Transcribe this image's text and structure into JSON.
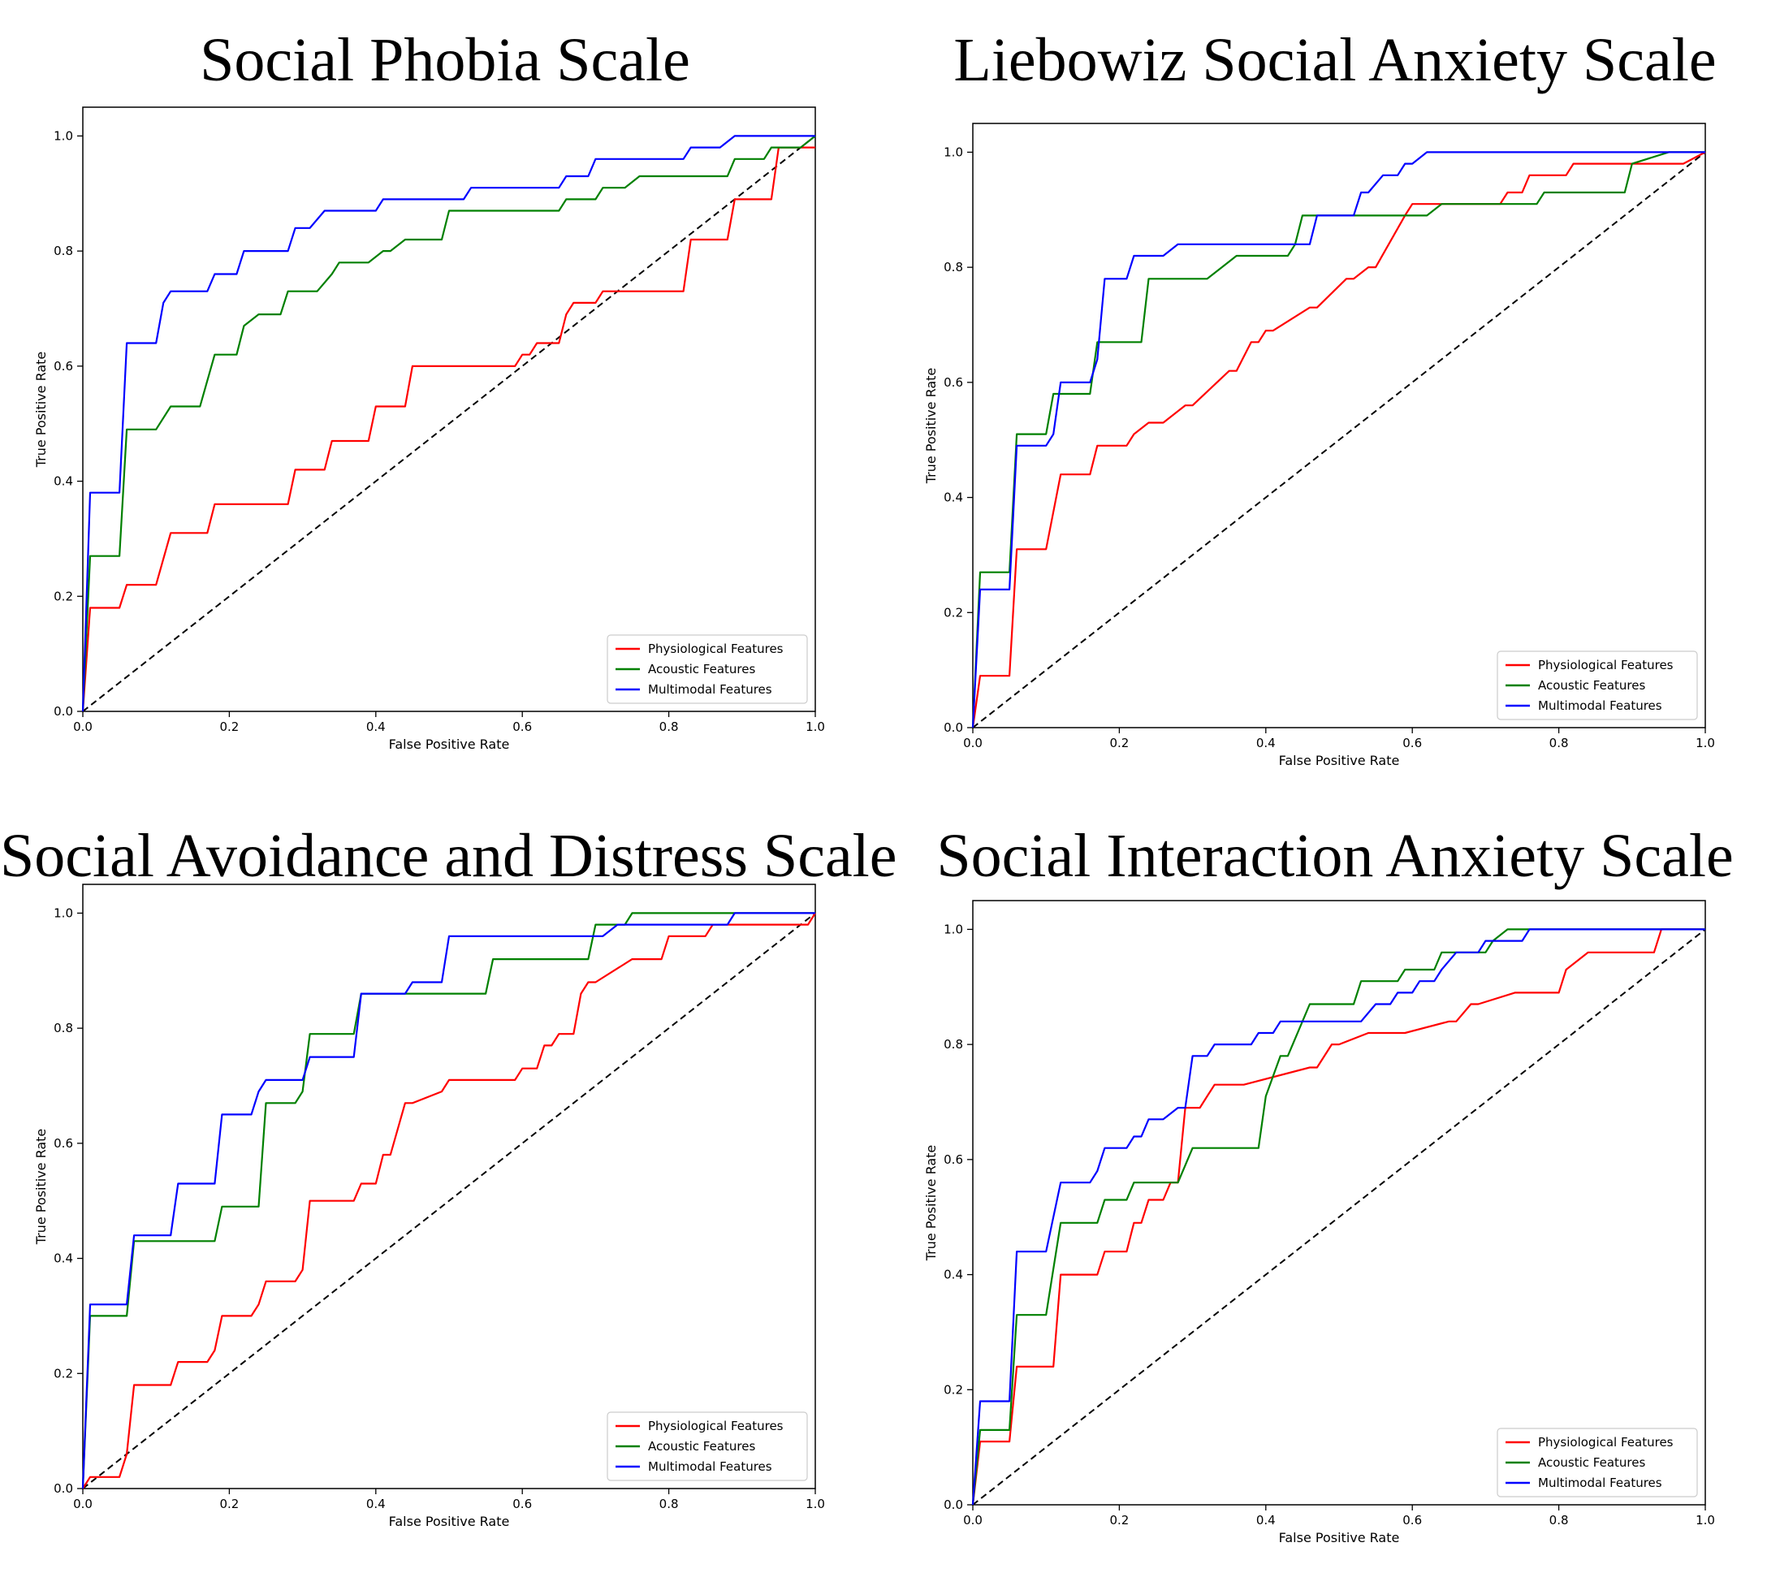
{
  "chart_data": [
    {
      "type": "line",
      "title": "Social Phobia Scale",
      "xlabel": "False Positive Rate",
      "ylabel": "True Positive Rate",
      "xlim": [
        0,
        1
      ],
      "ylim": [
        0,
        1
      ],
      "xticks": [
        "0.0",
        "0.2",
        "0.4",
        "0.6",
        "0.8",
        "1.0"
      ],
      "yticks": [
        "0.0",
        "0.2",
        "0.4",
        "0.6",
        "0.8",
        "1.0"
      ],
      "legend_position": "bottom-right",
      "series": [
        {
          "name": "Physiological Features",
          "color": "#ff0000",
          "x": [
            0,
            0.01,
            0.05,
            0.06,
            0.1,
            0.12,
            0.17,
            0.18,
            0.28,
            0.29,
            0.33,
            0.34,
            0.39,
            0.4,
            0.44,
            0.45,
            0.59,
            0.6,
            0.61,
            0.62,
            0.65,
            0.66,
            0.67,
            0.7,
            0.71,
            0.82,
            0.83,
            0.88,
            0.89,
            0.94,
            0.95,
            1.0
          ],
          "y": [
            0,
            0.18,
            0.18,
            0.22,
            0.22,
            0.31,
            0.31,
            0.36,
            0.36,
            0.42,
            0.42,
            0.47,
            0.47,
            0.53,
            0.53,
            0.6,
            0.6,
            0.62,
            0.62,
            0.64,
            0.64,
            0.69,
            0.71,
            0.71,
            0.73,
            0.73,
            0.82,
            0.82,
            0.89,
            0.89,
            0.98,
            0.98
          ]
        },
        {
          "name": "Acoustic Features",
          "color": "#008000",
          "x": [
            0,
            0.01,
            0.05,
            0.06,
            0.1,
            0.12,
            0.16,
            0.18,
            0.21,
            0.22,
            0.24,
            0.27,
            0.28,
            0.32,
            0.34,
            0.35,
            0.39,
            0.41,
            0.42,
            0.44,
            0.49,
            0.5,
            0.65,
            0.66,
            0.7,
            0.71,
            0.74,
            0.76,
            0.88,
            0.89,
            0.93,
            0.94,
            0.98,
            1.0
          ],
          "y": [
            0,
            0.27,
            0.27,
            0.49,
            0.49,
            0.53,
            0.53,
            0.62,
            0.62,
            0.67,
            0.69,
            0.69,
            0.73,
            0.73,
            0.76,
            0.78,
            0.78,
            0.8,
            0.8,
            0.82,
            0.82,
            0.87,
            0.87,
            0.89,
            0.89,
            0.91,
            0.91,
            0.93,
            0.93,
            0.96,
            0.96,
            0.98,
            0.98,
            1.0
          ]
        },
        {
          "name": "Multimodal Features",
          "color": "#0000ff",
          "x": [
            0,
            0.01,
            0.05,
            0.06,
            0.1,
            0.11,
            0.12,
            0.17,
            0.18,
            0.21,
            0.22,
            0.28,
            0.29,
            0.31,
            0.33,
            0.4,
            0.41,
            0.52,
            0.53,
            0.65,
            0.66,
            0.69,
            0.7,
            0.82,
            0.83,
            0.86,
            0.87,
            0.89,
            1.0
          ],
          "y": [
            0,
            0.38,
            0.38,
            0.64,
            0.64,
            0.71,
            0.73,
            0.73,
            0.76,
            0.76,
            0.8,
            0.8,
            0.84,
            0.84,
            0.87,
            0.87,
            0.89,
            0.89,
            0.91,
            0.91,
            0.93,
            0.93,
            0.96,
            0.96,
            0.98,
            0.98,
            0.98,
            1.0,
            1.0
          ]
        },
        {
          "name": "chance",
          "color": "#000000",
          "dashed": true,
          "x": [
            0,
            1
          ],
          "y": [
            0,
            1
          ]
        }
      ]
    },
    {
      "type": "line",
      "title": "Liebowiz Social Anxiety Scale",
      "xlabel": "False Positive Rate",
      "ylabel": "True Positive Rate",
      "xlim": [
        0,
        1
      ],
      "ylim": [
        0,
        1
      ],
      "xticks": [
        "0.0",
        "0.2",
        "0.4",
        "0.6",
        "0.8",
        "1.0"
      ],
      "yticks": [
        "0.0",
        "0.2",
        "0.4",
        "0.6",
        "0.8",
        "1.0"
      ],
      "legend_position": "bottom-right",
      "series": [
        {
          "name": "Physiological Features",
          "color": "#ff0000",
          "x": [
            0,
            0.01,
            0.05,
            0.06,
            0.1,
            0.12,
            0.16,
            0.17,
            0.21,
            0.22,
            0.24,
            0.26,
            0.29,
            0.3,
            0.35,
            0.36,
            0.38,
            0.39,
            0.4,
            0.41,
            0.46,
            0.47,
            0.51,
            0.52,
            0.54,
            0.55,
            0.59,
            0.6,
            0.65,
            0.72,
            0.73,
            0.75,
            0.76,
            0.81,
            0.82,
            0.97,
            1.0
          ],
          "y": [
            0,
            0.09,
            0.09,
            0.31,
            0.31,
            0.44,
            0.44,
            0.49,
            0.49,
            0.51,
            0.53,
            0.53,
            0.56,
            0.56,
            0.62,
            0.62,
            0.67,
            0.67,
            0.69,
            0.69,
            0.73,
            0.73,
            0.78,
            0.78,
            0.8,
            0.8,
            0.89,
            0.91,
            0.91,
            0.91,
            0.93,
            0.93,
            0.96,
            0.96,
            0.98,
            0.98,
            1.0
          ]
        },
        {
          "name": "Acoustic Features",
          "color": "#008000",
          "x": [
            0,
            0.01,
            0.05,
            0.06,
            0.1,
            0.11,
            0.16,
            0.17,
            0.23,
            0.24,
            0.32,
            0.34,
            0.36,
            0.43,
            0.44,
            0.45,
            0.62,
            0.64,
            0.69,
            0.7,
            0.77,
            0.78,
            0.89,
            0.9,
            0.95,
            1.0
          ],
          "y": [
            0,
            0.27,
            0.27,
            0.51,
            0.51,
            0.58,
            0.58,
            0.67,
            0.67,
            0.78,
            0.78,
            0.8,
            0.82,
            0.82,
            0.84,
            0.89,
            0.89,
            0.91,
            0.91,
            0.91,
            0.91,
            0.93,
            0.93,
            0.98,
            1.0,
            1.0
          ]
        },
        {
          "name": "Multimodal Features",
          "color": "#0000ff",
          "x": [
            0,
            0.01,
            0.05,
            0.06,
            0.1,
            0.11,
            0.12,
            0.16,
            0.17,
            0.18,
            0.21,
            0.22,
            0.26,
            0.28,
            0.46,
            0.47,
            0.52,
            0.53,
            0.54,
            0.56,
            0.58,
            0.59,
            0.6,
            0.62,
            1.0
          ],
          "y": [
            0,
            0.24,
            0.24,
            0.49,
            0.49,
            0.51,
            0.6,
            0.6,
            0.64,
            0.78,
            0.78,
            0.82,
            0.82,
            0.84,
            0.84,
            0.89,
            0.89,
            0.93,
            0.93,
            0.96,
            0.96,
            0.98,
            0.98,
            1.0,
            1.0
          ]
        },
        {
          "name": "chance",
          "color": "#000000",
          "dashed": true,
          "x": [
            0,
            1
          ],
          "y": [
            0,
            1
          ]
        }
      ]
    },
    {
      "type": "line",
      "title": "Social Avoidance and Distress Scale",
      "xlabel": "False Positive Rate",
      "ylabel": "True Positive Rate",
      "xlim": [
        0,
        1
      ],
      "ylim": [
        0,
        1
      ],
      "xticks": [
        "0.0",
        "0.2",
        "0.4",
        "0.6",
        "0.8",
        "1.0"
      ],
      "yticks": [
        "0.0",
        "0.2",
        "0.4",
        "0.6",
        "0.8",
        "1.0"
      ],
      "legend_position": "bottom-right",
      "series": [
        {
          "name": "Physiological Features",
          "color": "#ff0000",
          "x": [
            0,
            0.01,
            0.05,
            0.06,
            0.07,
            0.12,
            0.13,
            0.17,
            0.18,
            0.19,
            0.23,
            0.24,
            0.25,
            0.29,
            0.3,
            0.31,
            0.37,
            0.38,
            0.4,
            0.41,
            0.42,
            0.44,
            0.45,
            0.49,
            0.5,
            0.59,
            0.6,
            0.62,
            0.63,
            0.64,
            0.65,
            0.67,
            0.68,
            0.69,
            0.7,
            0.75,
            0.76,
            0.79,
            0.8,
            0.85,
            0.86,
            0.99,
            1.0
          ],
          "y": [
            0,
            0.02,
            0.02,
            0.06,
            0.18,
            0.18,
            0.22,
            0.22,
            0.24,
            0.3,
            0.3,
            0.32,
            0.36,
            0.36,
            0.38,
            0.5,
            0.5,
            0.53,
            0.53,
            0.58,
            0.58,
            0.67,
            0.67,
            0.69,
            0.71,
            0.71,
            0.73,
            0.73,
            0.77,
            0.77,
            0.79,
            0.79,
            0.86,
            0.88,
            0.88,
            0.92,
            0.92,
            0.92,
            0.96,
            0.96,
            0.98,
            0.98,
            1.0
          ]
        },
        {
          "name": "Acoustic Features",
          "color": "#008000",
          "x": [
            0,
            0.01,
            0.06,
            0.07,
            0.18,
            0.19,
            0.24,
            0.25,
            0.29,
            0.3,
            0.31,
            0.37,
            0.38,
            0.55,
            0.56,
            0.69,
            0.7,
            0.74,
            0.75,
            1.0
          ],
          "y": [
            0,
            0.3,
            0.3,
            0.43,
            0.43,
            0.49,
            0.49,
            0.67,
            0.67,
            0.69,
            0.79,
            0.79,
            0.86,
            0.86,
            0.92,
            0.92,
            0.98,
            0.98,
            1.0,
            1.0
          ]
        },
        {
          "name": "Multimodal Features",
          "color": "#0000ff",
          "x": [
            0,
            0.01,
            0.06,
            0.07,
            0.12,
            0.13,
            0.18,
            0.19,
            0.23,
            0.24,
            0.25,
            0.3,
            0.31,
            0.37,
            0.38,
            0.44,
            0.45,
            0.49,
            0.5,
            0.62,
            0.7,
            0.71,
            0.73,
            0.74,
            0.88,
            0.89,
            1.0
          ],
          "y": [
            0,
            0.32,
            0.32,
            0.44,
            0.44,
            0.53,
            0.53,
            0.65,
            0.65,
            0.69,
            0.71,
            0.71,
            0.75,
            0.75,
            0.86,
            0.86,
            0.88,
            0.88,
            0.96,
            0.96,
            0.96,
            0.96,
            0.98,
            0.98,
            0.98,
            1.0,
            1.0
          ]
        },
        {
          "name": "chance",
          "color": "#000000",
          "dashed": true,
          "x": [
            0,
            1
          ],
          "y": [
            0,
            1
          ]
        }
      ]
    },
    {
      "type": "line",
      "title": "Social Interaction Anxiety Scale",
      "xlabel": "False Positive Rate",
      "ylabel": "True Positive Rate",
      "xlim": [
        0,
        1
      ],
      "ylim": [
        0,
        1
      ],
      "xticks": [
        "0.0",
        "0.2",
        "0.4",
        "0.6",
        "0.8",
        "1.0"
      ],
      "yticks": [
        "0.0",
        "0.2",
        "0.4",
        "0.6",
        "0.8",
        "1.0"
      ],
      "legend_position": "bottom-right",
      "series": [
        {
          "name": "Physiological Features",
          "color": "#ff0000",
          "x": [
            0,
            0.01,
            0.05,
            0.06,
            0.11,
            0.12,
            0.17,
            0.18,
            0.21,
            0.22,
            0.23,
            0.24,
            0.26,
            0.27,
            0.28,
            0.29,
            0.31,
            0.32,
            0.33,
            0.36,
            0.37,
            0.46,
            0.47,
            0.49,
            0.5,
            0.54,
            0.55,
            0.58,
            0.59,
            0.65,
            0.66,
            0.68,
            0.69,
            0.74,
            0.75,
            0.8,
            0.81,
            0.84,
            0.85,
            0.93,
            0.94,
            1.0
          ],
          "y": [
            0,
            0.11,
            0.11,
            0.24,
            0.24,
            0.4,
            0.4,
            0.44,
            0.44,
            0.49,
            0.49,
            0.53,
            0.53,
            0.56,
            0.56,
            0.69,
            0.69,
            0.71,
            0.73,
            0.73,
            0.73,
            0.76,
            0.76,
            0.8,
            0.8,
            0.82,
            0.82,
            0.82,
            0.82,
            0.84,
            0.84,
            0.87,
            0.87,
            0.89,
            0.89,
            0.89,
            0.93,
            0.96,
            0.96,
            0.96,
            1.0,
            1.0
          ]
        },
        {
          "name": "Acoustic Features",
          "color": "#008000",
          "x": [
            0,
            0.01,
            0.05,
            0.06,
            0.1,
            0.12,
            0.17,
            0.18,
            0.21,
            0.22,
            0.28,
            0.3,
            0.31,
            0.39,
            0.4,
            0.42,
            0.43,
            0.45,
            0.46,
            0.52,
            0.53,
            0.58,
            0.59,
            0.63,
            0.64,
            0.7,
            0.71,
            0.73,
            1.0
          ],
          "y": [
            0,
            0.13,
            0.13,
            0.33,
            0.33,
            0.49,
            0.49,
            0.53,
            0.53,
            0.56,
            0.56,
            0.62,
            0.62,
            0.62,
            0.71,
            0.78,
            0.78,
            0.84,
            0.87,
            0.87,
            0.91,
            0.91,
            0.93,
            0.93,
            0.96,
            0.96,
            0.98,
            1.0,
            1.0
          ]
        },
        {
          "name": "Multimodal Features",
          "color": "#0000ff",
          "x": [
            0,
            0.01,
            0.05,
            0.06,
            0.1,
            0.12,
            0.16,
            0.17,
            0.18,
            0.21,
            0.22,
            0.23,
            0.24,
            0.26,
            0.28,
            0.29,
            0.3,
            0.32,
            0.33,
            0.38,
            0.39,
            0.41,
            0.42,
            0.52,
            0.53,
            0.55,
            0.57,
            0.58,
            0.6,
            0.61,
            0.63,
            0.64,
            0.66,
            0.69,
            0.7,
            0.75,
            0.76,
            1.0
          ],
          "y": [
            0,
            0.18,
            0.18,
            0.44,
            0.44,
            0.56,
            0.56,
            0.58,
            0.62,
            0.62,
            0.64,
            0.64,
            0.67,
            0.67,
            0.69,
            0.69,
            0.78,
            0.78,
            0.8,
            0.8,
            0.82,
            0.82,
            0.84,
            0.84,
            0.84,
            0.87,
            0.87,
            0.89,
            0.89,
            0.91,
            0.91,
            0.93,
            0.96,
            0.96,
            0.98,
            0.98,
            1.0,
            1.0
          ]
        },
        {
          "name": "chance",
          "color": "#000000",
          "dashed": true,
          "x": [
            0,
            1
          ],
          "y": [
            0,
            1
          ]
        }
      ]
    }
  ]
}
